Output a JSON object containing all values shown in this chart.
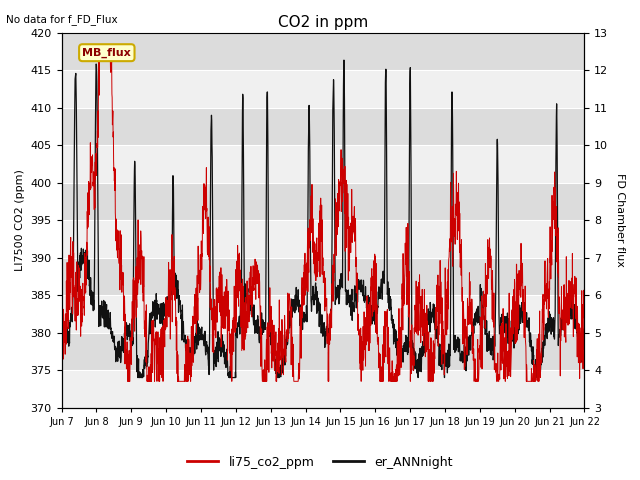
{
  "title": "CO2 in ppm",
  "top_left_text": "No data for f_FD_Flux",
  "ylabel_left": "LI7500 CO2 (ppm)",
  "ylabel_right": "FD Chamber flux",
  "ylim_left": [
    370,
    420
  ],
  "ylim_right": [
    3.0,
    13.0
  ],
  "yticks_left": [
    370,
    375,
    380,
    385,
    390,
    395,
    400,
    405,
    410,
    415,
    420
  ],
  "yticks_right": [
    3.0,
    4.0,
    5.0,
    6.0,
    7.0,
    8.0,
    9.0,
    10.0,
    11.0,
    12.0,
    13.0
  ],
  "xtick_labels": [
    "Jun 7",
    "Jun 8",
    "Jun 9",
    "Jun 10",
    "Jun 11",
    "Jun 12",
    "Jun 13",
    "Jun 14",
    "Jun 15",
    "Jun 16",
    "Jun 17",
    "Jun 18",
    "Jun 19",
    "Jun 20",
    "Jun 21",
    "Jun 22"
  ],
  "legend_label_red": "li75_co2_ppm",
  "legend_label_black": "er_ANNnight",
  "legend_box_label": "MB_flux",
  "bg_color_light": "#f0f0f0",
  "bg_color_dark": "#dcdcdc",
  "line_color_red": "#cc0000",
  "line_color_black": "#111111",
  "legend_box_color": "#ffffcc",
  "legend_box_edge": "#ccaa00",
  "grid_color": "#ffffff"
}
